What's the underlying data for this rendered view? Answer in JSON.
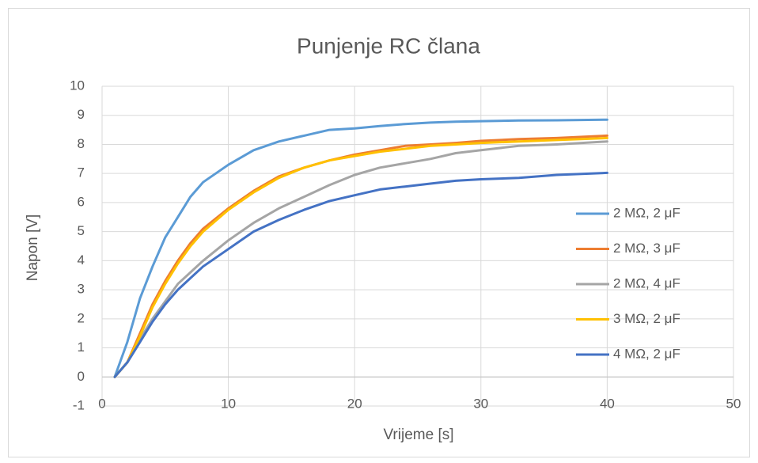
{
  "chart_data": {
    "type": "line",
    "title": "Punjenje RC člana",
    "x_label": "Vrijeme [s]",
    "y_label": "Napon [V]",
    "x": [
      1,
      2,
      3,
      4,
      5,
      6,
      7,
      8,
      10,
      12,
      14,
      16,
      18,
      20,
      22,
      24,
      26,
      28,
      30,
      33,
      36,
      40
    ],
    "series": [
      {
        "name": "2 MΩ, 2 μF",
        "color": "#5b9bd5",
        "values": [
          0,
          1.2,
          2.7,
          3.8,
          4.8,
          5.5,
          6.2,
          6.7,
          7.3,
          7.8,
          8.1,
          8.3,
          8.5,
          8.55,
          8.63,
          8.7,
          8.75,
          8.78,
          8.8,
          8.82,
          8.83,
          8.85
        ]
      },
      {
        "name": "2 MΩ, 3 μF",
        "color": "#ed7d31",
        "values": [
          0,
          0.5,
          1.5,
          2.5,
          3.3,
          4.0,
          4.6,
          5.1,
          5.8,
          6.4,
          6.9,
          7.2,
          7.45,
          7.65,
          7.8,
          7.95,
          8.0,
          8.05,
          8.12,
          8.18,
          8.22,
          8.3
        ]
      },
      {
        "name": "2 MΩ, 4 μF",
        "color": "#a5a5a5",
        "values": [
          0,
          0.5,
          1.3,
          2.0,
          2.6,
          3.2,
          3.6,
          4.0,
          4.7,
          5.3,
          5.8,
          6.2,
          6.6,
          6.95,
          7.2,
          7.35,
          7.5,
          7.7,
          7.8,
          7.95,
          8.0,
          8.1
        ]
      },
      {
        "name": "3 MΩ, 2 μF",
        "color": "#ffc000",
        "values": [
          0,
          0.5,
          1.4,
          2.4,
          3.2,
          3.9,
          4.5,
          5.0,
          5.75,
          6.35,
          6.85,
          7.2,
          7.45,
          7.6,
          7.75,
          7.85,
          7.95,
          8.0,
          8.05,
          8.1,
          8.15,
          8.22
        ]
      },
      {
        "name": "4 MΩ, 2 μF",
        "color": "#4472c4",
        "values": [
          0,
          0.5,
          1.2,
          1.9,
          2.5,
          3.0,
          3.4,
          3.8,
          4.4,
          5.0,
          5.4,
          5.75,
          6.05,
          6.25,
          6.45,
          6.55,
          6.65,
          6.75,
          6.8,
          6.85,
          6.95,
          7.02
        ]
      }
    ],
    "xlim": [
      0,
      50
    ],
    "xticks": [
      0,
      10,
      20,
      30,
      40,
      50
    ],
    "ylim": [
      -1,
      10
    ],
    "yticks": [
      -1,
      0,
      1,
      2,
      3,
      4,
      5,
      6,
      7,
      8,
      9,
      10
    ],
    "grid": true,
    "legend": "right"
  }
}
